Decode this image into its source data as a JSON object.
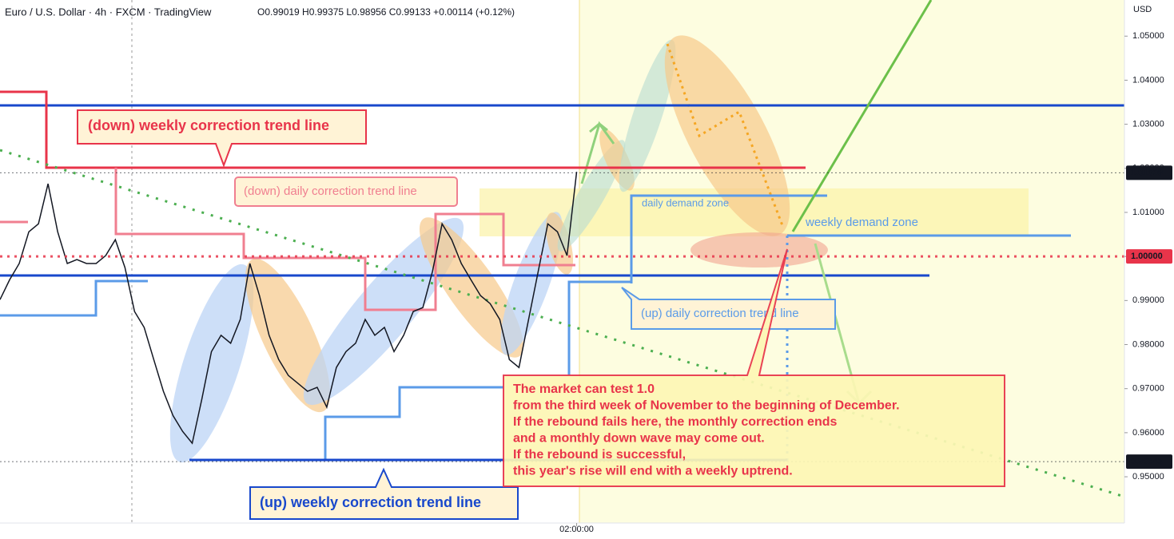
{
  "chart_data": {
    "type": "line",
    "title": "Euro / U.S. Dollar · 4h · FXCM · TradingView",
    "subtitle": "O0.99019 H0.99375 L0.98956 C0.99133 +0.00114 (+0.12%)",
    "y_label": "USD",
    "color": "#131722",
    "values": [
      0.9902,
      0.9947,
      0.9984,
      1.0056,
      1.0074,
      1.0165,
      1.0056,
      0.9984,
      0.9993,
      0.9984,
      0.9984,
      1.0002,
      1.0038,
      0.9975,
      0.9875,
      0.9839,
      0.9766,
      0.9694,
      0.9639,
      0.9603,
      0.9576,
      0.9676,
      0.9784,
      0.9821,
      0.9803,
      0.9857,
      0.9984,
      0.9911,
      0.9821,
      0.9766,
      0.973,
      0.9712,
      0.9694,
      0.9703,
      0.9658,
      0.9748,
      0.9784,
      0.9803,
      0.9857,
      0.9821,
      0.9839,
      0.9784,
      0.9821,
      0.9875,
      0.9884,
      0.9966,
      1.0074,
      1.0038,
      0.9984,
      0.9947,
      0.9911,
      0.9893,
      0.9857,
      0.9766,
      0.9748,
      0.9857,
      0.9966,
      1.0074,
      1.0056,
      1.0002,
      1.0192
    ],
    "xlim": [
      0,
      117
    ],
    "xticks": [
      {
        "value": 60,
        "label": "02:00:00"
      }
    ],
    "ylim": [
      0.9395,
      1.0582
    ],
    "yticks": [
      {
        "value": 0.95,
        "label": "0.95000"
      },
      {
        "value": 0.96,
        "label": "0.96000"
      },
      {
        "value": 0.97,
        "label": "0.97000"
      },
      {
        "value": 0.98,
        "label": "0.98000"
      },
      {
        "value": 0.99,
        "label": "0.99000"
      },
      {
        "value": 1.0,
        "label": "1.00000"
      },
      {
        "value": 1.01,
        "label": "1.01000"
      },
      {
        "value": 1.02,
        "label": "1.02000"
      },
      {
        "value": 1.03,
        "label": "1.03000"
      },
      {
        "value": 1.04,
        "label": "1.04000"
      },
      {
        "value": 1.05,
        "label": "1.05000"
      }
    ],
    "price_markers": [
      {
        "value": 1.01898,
        "color": "#131722"
      },
      {
        "value": 1,
        "label": "1.00000",
        "color": "#e8344a"
      },
      {
        "value": 0.95343,
        "color": "#131722"
      }
    ],
    "annotations": {
      "down_weekly": "(down) weekly correction trend line",
      "down_daily": "(down) daily correction trend line",
      "daily_demand": "daily demand zone",
      "weekly_demand": "weekly demand zone",
      "up_daily": "(up) daily correction trend line",
      "up_weekly": "(up) weekly correction trend line",
      "note": [
        "The market can test 1.0",
        "from the third week of November to the beginning of December.",
        "If the rebound fails here, the monthly correction ends",
        "and a monthly down wave may come out.",
        "If the rebound is successful,",
        "this year's rise will end with a weekly uptrend."
      ]
    }
  }
}
